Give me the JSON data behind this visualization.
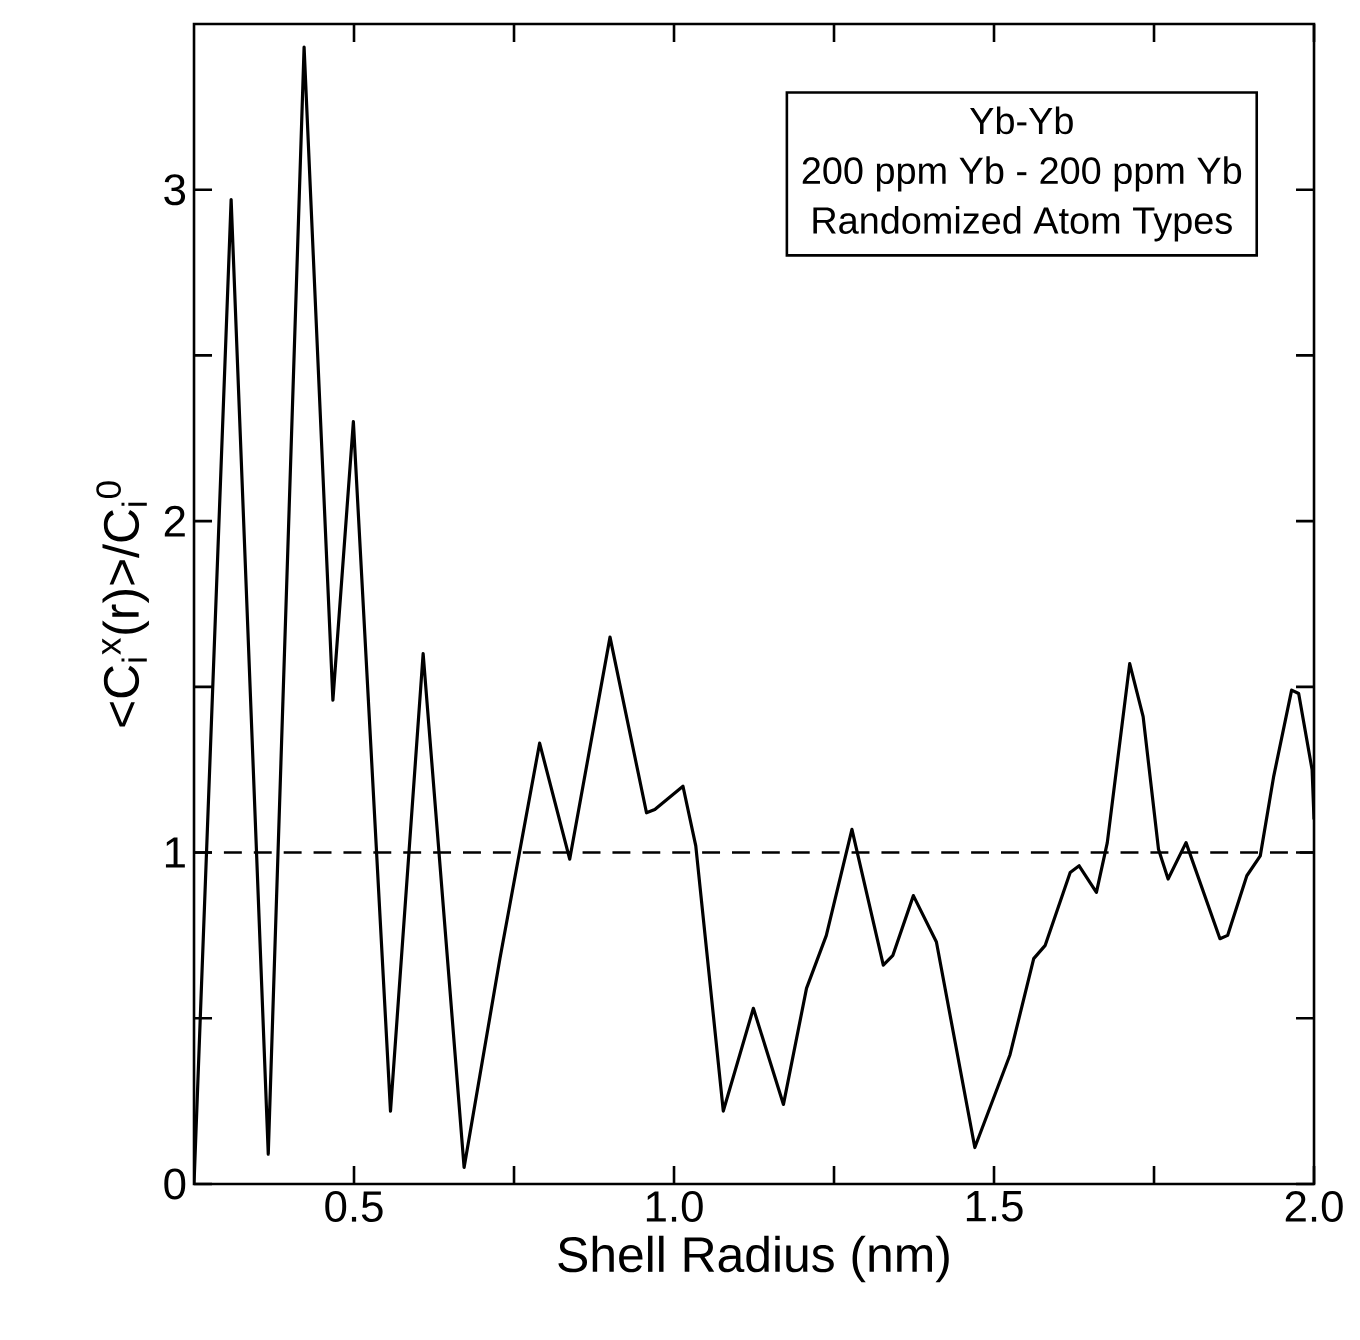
{
  "chart_data": {
    "type": "line",
    "title": "Yb-Yb",
    "subtitle": "200 ppm Yb - 200 ppm Yb",
    "annotations": [
      "Randomized Atom Types"
    ],
    "xlabel": "Shell Radius (nm)",
    "ylabel": "<C$_{i}$$^{x}$(r)>/C$_{i}$$^{0}$",
    "xlim": [
      0.25,
      2.0
    ],
    "ylim": [
      0,
      3.5
    ],
    "xticks": [
      0.5,
      {
        "value": 0.75,
        "label": null
      },
      {
        "value": 1.0,
        "label": "1.0"
      },
      {
        "value": 1.25,
        "label": null
      },
      {
        "value": 1.5,
        "label": "1.5"
      },
      {
        "value": 1.75,
        "label": null
      },
      {
        "value": 2.0,
        "label": "2.0"
      }
    ],
    "yticks": [
      0,
      {
        "value": 0.5,
        "label": null
      },
      1,
      {
        "value": 1.5,
        "label": null
      },
      2,
      {
        "value": 2.5,
        "label": null
      },
      3
    ],
    "marker": "none",
    "line_style": "solid",
    "ref_lines": [
      {
        "axis": "y",
        "value": 1,
        "line_style": "dashed",
        "color": "#000000"
      }
    ],
    "series": [
      {
        "color": "#000000",
        "x": [
          0.25,
          0.308,
          0.366,
          0.422,
          0.467,
          0.499,
          0.557,
          0.608,
          0.672,
          0.728,
          0.79,
          0.837,
          0.9,
          0.957,
          0.97,
          1.014,
          1.034,
          1.077,
          1.124,
          1.171,
          1.207,
          1.238,
          1.278,
          1.327,
          1.342,
          1.374,
          1.41,
          1.47,
          1.525,
          1.562,
          1.58,
          1.619,
          1.633,
          1.66,
          1.677,
          1.712,
          1.733,
          1.757,
          1.772,
          1.8,
          1.853,
          1.865,
          1.895,
          1.916,
          1.937,
          1.965,
          1.976,
          1.997,
          2.0
        ],
        "values": [
          0.0,
          2.97,
          0.09,
          3.43,
          1.46,
          2.3,
          0.22,
          1.6,
          0.05,
          0.68,
          1.33,
          0.98,
          1.65,
          1.12,
          1.13,
          1.2,
          1.02,
          0.22,
          0.53,
          0.24,
          0.59,
          0.75,
          1.07,
          0.66,
          0.69,
          0.87,
          0.73,
          0.11,
          0.39,
          0.68,
          0.72,
          0.94,
          0.96,
          0.88,
          1.03,
          1.57,
          1.41,
          1.01,
          0.92,
          1.03,
          0.74,
          0.75,
          0.93,
          0.99,
          1.23,
          1.49,
          1.48,
          1.25,
          1.1
        ]
      }
    ]
  }
}
